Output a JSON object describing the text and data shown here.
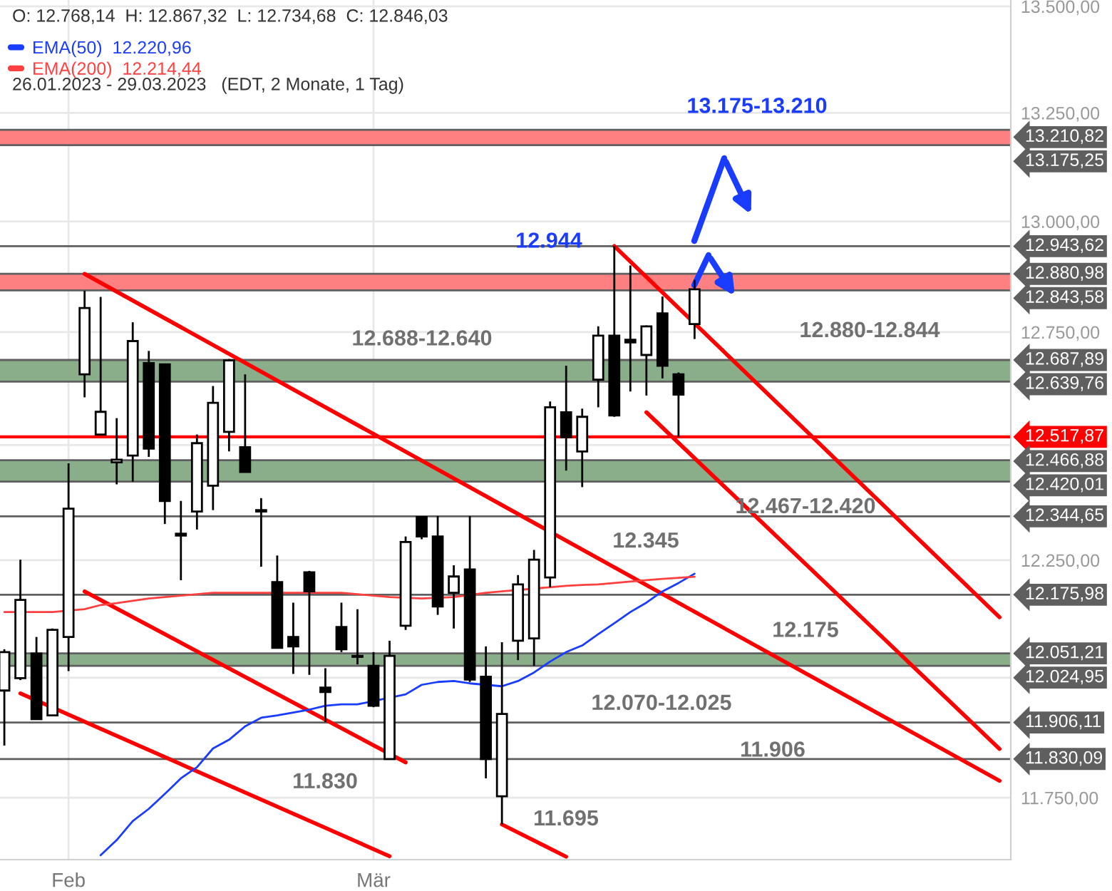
{
  "chart_data": {
    "type": "candlestick",
    "title": "O: 12.768,14  H: 12.867,32  L: 12.734,68  C: 12.846,03",
    "subtitle": "26.01.2023 - 29.03.2023   (EDT, 2 Monate, 1 Tag)",
    "categories": [
      null,
      null,
      null,
      null,
      "Feb",
      null,
      null,
      null,
      null,
      null,
      null,
      null,
      null,
      null,
      null,
      null,
      null,
      null,
      null,
      null,
      null,
      null,
      null,
      "Mär",
      null,
      null,
      null,
      null,
      null,
      null,
      null,
      null,
      null,
      null,
      null,
      null,
      null,
      null,
      null,
      null,
      null,
      null,
      null,
      null,
      null,
      null,
      null,
      null,
      null,
      null,
      null,
      null,
      null,
      null,
      null,
      null,
      null,
      null,
      null,
      null,
      null,
      null,
      null
    ],
    "ohlc": [
      [
        11973,
        12060,
        11858,
        12054
      ],
      [
        11999,
        12251,
        11995,
        12165
      ],
      [
        12051,
        12086,
        11912,
        11913
      ],
      [
        11921,
        12104,
        11920,
        12101
      ],
      [
        12086,
        12460,
        12014,
        12361
      ],
      [
        12656,
        12843,
        12605,
        12804
      ],
      [
        12523,
        12829,
        12523,
        12573
      ],
      [
        12462,
        12559,
        12414,
        12468
      ],
      [
        12477,
        12772,
        12420,
        12730
      ],
      [
        12681,
        12708,
        12474,
        12492
      ],
      [
        12678,
        12680,
        12328,
        12378
      ],
      [
        12307,
        12378,
        12207,
        12303
      ],
      [
        12355,
        12523,
        12316,
        12504
      ],
      [
        12411,
        12630,
        12358,
        12593
      ],
      [
        12529,
        12690,
        12486,
        12687
      ],
      [
        12495,
        12656,
        12440,
        12441
      ],
      [
        12358,
        12384,
        12236,
        12355
      ],
      [
        12203,
        12260,
        12062,
        12063
      ],
      [
        12086,
        12159,
        12008,
        12066
      ],
      [
        12224,
        12227,
        12006,
        12183
      ],
      [
        11979,
        12020,
        11907,
        11970
      ],
      [
        12107,
        12159,
        12054,
        12060
      ],
      [
        12046,
        12145,
        12028,
        12044
      ],
      [
        12025,
        12054,
        11938,
        11941
      ],
      [
        11830,
        12078,
        11830,
        12046
      ],
      [
        12110,
        12301,
        12101,
        12289
      ],
      [
        12343,
        12345,
        12295,
        12301
      ],
      [
        12301,
        12345,
        12133,
        12151
      ],
      [
        12180,
        12239,
        12104,
        12215
      ],
      [
        12230,
        12345,
        11991,
        11996
      ],
      [
        12002,
        12066,
        11790,
        11830
      ],
      [
        11753,
        12075,
        11695,
        11924
      ],
      [
        12078,
        12218,
        12037,
        12198
      ],
      [
        12083,
        12272,
        12025,
        12251
      ],
      [
        12213,
        12596,
        12192,
        12583
      ],
      [
        12572,
        12675,
        12444,
        12517
      ],
      [
        12486,
        12580,
        12408,
        12562
      ],
      [
        12644,
        12763,
        12583,
        12742
      ],
      [
        12742,
        12944,
        12562,
        12565
      ],
      [
        12733,
        12900,
        12618,
        12727
      ],
      [
        12699,
        12765,
        12609,
        12763
      ],
      [
        12792,
        12830,
        12647,
        12675
      ],
      [
        12656,
        12660,
        12518,
        12611
      ],
      [
        12768.14,
        12867.32,
        12734.68,
        12846.03
      ],
      null,
      null,
      null,
      null,
      null,
      null,
      null,
      null,
      null,
      null,
      null,
      null,
      null,
      null,
      null,
      null,
      null,
      null,
      null
    ],
    "series": [
      {
        "type": "line",
        "name": "EMA(50)  12.220,96",
        "color": "#1a3cff",
        "values": [
          null,
          null,
          null,
          null,
          null,
          null,
          11632,
          11663,
          11702,
          11727,
          11758,
          11790,
          11813,
          11852,
          11870,
          11898,
          11916,
          11921,
          11927,
          11933,
          11941,
          11944,
          11944,
          null,
          null,
          11965,
          11985,
          11991,
          11993,
          11988,
          null,
          11982,
          11993,
          12011,
          12034,
          12054,
          12068,
          12092,
          12115,
          12139,
          12159,
          12183,
          12201,
          12220.96,
          null,
          null,
          null,
          null,
          null,
          null,
          null,
          null,
          null,
          null,
          null,
          null,
          null,
          null,
          null,
          null,
          null,
          null,
          null
        ]
      },
      {
        "type": "line",
        "name": "EMA(200)  12.214,44",
        "color": "#ff4040",
        "values": [
          12139,
          null,
          12139,
          12139,
          null,
          12145,
          12154,
          12158,
          12163,
          12168,
          12171,
          12174,
          12177,
          12180,
          12180,
          12180,
          12180,
          null,
          12180,
          12180,
          12180,
          12180,
          12177,
          12174,
          12171,
          null,
          12168,
          null,
          12171,
          null,
          12180,
          12183,
          null,
          null,
          12192,
          12195,
          12197,
          12198,
          12201,
          12204,
          12207,
          12210,
          12212,
          12214.44,
          null,
          null,
          null,
          null,
          null,
          null,
          null,
          null,
          null,
          null,
          null,
          null,
          null,
          null,
          null,
          null,
          null,
          null,
          null
        ]
      },
      {
        "type": "line",
        "color": "#ff0000",
        "values": [
          null,
          null,
          null,
          null,
          null,
          12881,
          null,
          null,
          null,
          null,
          null,
          null,
          null,
          null,
          null,
          null,
          null,
          null,
          null,
          null,
          null,
          null,
          null,
          null,
          null,
          null,
          null,
          null,
          null,
          null,
          null,
          null,
          null,
          null,
          null,
          null,
          null,
          null,
          null,
          null,
          null,
          null,
          null,
          null,
          null,
          null,
          null,
          null,
          null,
          null,
          null,
          null,
          null,
          null,
          null,
          null,
          null,
          null,
          null,
          null,
          null,
          null,
          11785
        ]
      },
      {
        "type": "line",
        "color": "#ff0000",
        "values": [
          null,
          null,
          null,
          null,
          null,
          12183,
          null,
          null,
          null,
          null,
          null,
          null,
          null,
          null,
          null,
          null,
          null,
          null,
          null,
          null,
          null,
          null,
          null,
          null,
          null,
          11823,
          null,
          null,
          null,
          null,
          null,
          null,
          null,
          null,
          null,
          null,
          null,
          null,
          null,
          null,
          null,
          null,
          null,
          null,
          null,
          null,
          null,
          null,
          null,
          null,
          null,
          null,
          null,
          null,
          null,
          null,
          null,
          null,
          null,
          null,
          null,
          null,
          null
        ]
      },
      {
        "type": "line",
        "color": "#ff0000",
        "values": [
          null,
          11967,
          null,
          null,
          null,
          null,
          null,
          null,
          null,
          null,
          null,
          null,
          null,
          null,
          null,
          null,
          null,
          null,
          null,
          null,
          null,
          null,
          null,
          null,
          11630,
          null,
          null,
          null,
          null,
          null,
          null,
          null,
          null,
          null,
          null,
          null,
          null,
          null,
          null,
          null,
          null,
          null,
          null,
          null,
          null,
          null,
          null,
          null,
          null,
          null,
          null,
          null,
          null,
          null,
          null,
          null,
          null,
          null,
          null,
          null,
          null,
          null,
          null
        ]
      },
      {
        "type": "line",
        "color": "#ff0000",
        "values": [
          null,
          null,
          null,
          null,
          null,
          null,
          null,
          null,
          null,
          null,
          null,
          null,
          null,
          null,
          null,
          null,
          null,
          null,
          null,
          null,
          null,
          null,
          null,
          null,
          null,
          null,
          null,
          null,
          null,
          null,
          null,
          11695,
          null,
          null,
          null,
          11629,
          null,
          null,
          null,
          null,
          null,
          null,
          null,
          null,
          null,
          null,
          null,
          null,
          null,
          null,
          null,
          null,
          null,
          null,
          null,
          null,
          null,
          null,
          null,
          null,
          null,
          null,
          null
        ]
      },
      {
        "type": "line",
        "color": "#ff0000",
        "values": [
          null,
          null,
          null,
          null,
          null,
          null,
          null,
          null,
          null,
          null,
          null,
          null,
          null,
          null,
          null,
          null,
          null,
          null,
          null,
          null,
          null,
          null,
          null,
          null,
          null,
          null,
          null,
          null,
          null,
          null,
          null,
          null,
          null,
          null,
          null,
          null,
          null,
          null,
          12944,
          null,
          null,
          null,
          null,
          null,
          null,
          null,
          null,
          null,
          null,
          null,
          null,
          null,
          null,
          null,
          null,
          null,
          null,
          null,
          null,
          null,
          null,
          null,
          12128
        ]
      },
      {
        "type": "line",
        "color": "#ff0000",
        "values": [
          null,
          null,
          null,
          null,
          null,
          null,
          null,
          null,
          null,
          null,
          null,
          null,
          null,
          null,
          null,
          null,
          null,
          null,
          null,
          null,
          null,
          null,
          null,
          null,
          null,
          null,
          null,
          null,
          null,
          null,
          null,
          null,
          null,
          null,
          null,
          null,
          null,
          null,
          null,
          null,
          12572,
          null,
          null,
          null,
          null,
          null,
          null,
          null,
          null,
          null,
          null,
          null,
          null,
          null,
          null,
          null,
          null,
          null,
          null,
          null,
          null,
          null,
          11851
        ]
      }
    ],
    "bands": [
      {
        "axis": "y",
        "from": 13175.25,
        "to": 13210.82,
        "color": "#ff8080"
      },
      {
        "axis": "y",
        "from": 12843.58,
        "to": 12880.98,
        "color": "#ff8080"
      },
      {
        "axis": "y",
        "from": 12639.76,
        "to": 12687.89,
        "color": "#8aae8a"
      },
      {
        "axis": "y",
        "from": 12420.01,
        "to": 12466.88,
        "color": "#8aae8a"
      },
      {
        "axis": "y",
        "from": 12024.95,
        "to": 12051.21,
        "color": "#8aae8a"
      }
    ],
    "ref_lines": [
      {
        "axis": "y",
        "value": 13210.82,
        "label": "13.210,82",
        "color": "#5f5f5f"
      },
      {
        "axis": "y",
        "value": 13175.25,
        "label": "13.175,25",
        "color": "#5f5f5f"
      },
      {
        "axis": "y",
        "value": 12943.62,
        "label": "12.943,62",
        "color": "#5f5f5f"
      },
      {
        "axis": "y",
        "value": 12880.98,
        "label": "12.880,98",
        "color": "#5f5f5f"
      },
      {
        "axis": "y",
        "value": 12843.58,
        "label": "12.843,58",
        "color": "#5f5f5f"
      },
      {
        "axis": "y",
        "value": 12687.89,
        "label": "12.687,89",
        "color": "#5f5f5f"
      },
      {
        "axis": "y",
        "value": 12639.76,
        "label": "12.639,76",
        "color": "#5f5f5f"
      },
      {
        "axis": "y",
        "value": 12517.87,
        "label": "12.517,87",
        "color": "#ff0000"
      },
      {
        "axis": "y",
        "value": 12466.88,
        "label": "12.466,88",
        "color": "#5f5f5f"
      },
      {
        "axis": "y",
        "value": 12420.01,
        "label": "12.420,01",
        "color": "#5f5f5f"
      },
      {
        "axis": "y",
        "value": 12344.65,
        "label": "12.344,65",
        "color": "#5f5f5f"
      },
      {
        "axis": "y",
        "value": 12175.98,
        "label": "12.175,98",
        "color": "#5f5f5f"
      },
      {
        "axis": "y",
        "value": 12051.21,
        "label": "12.051,21",
        "color": "#5f5f5f"
      },
      {
        "axis": "y",
        "value": 12024.95,
        "label": "12.024,95",
        "color": "#5f5f5f"
      },
      {
        "axis": "y",
        "value": 11906.11,
        "label": "11.906,11",
        "color": "#5f5f5f"
      },
      {
        "axis": "y",
        "value": 11830.09,
        "label": "11.830,09",
        "color": "#5f5f5f"
      }
    ],
    "annotations": [
      "13.175-13.210",
      "12.944",
      "12.688-12.640",
      "12.880-12.844",
      "12.467-12.420",
      "12.345",
      "12.175",
      "12.070-12.025",
      "11.906",
      "11.830",
      "11.695"
    ],
    "ylim": [
      11623,
      13515
    ],
    "yticks": [
      {
        "value": 11750,
        "label": "11.750,00"
      },
      {
        "value": 12000,
        "label": null
      },
      {
        "value": 12250,
        "label": "12.250,00"
      },
      {
        "value": 12500,
        "label": null
      },
      {
        "value": 12750,
        "label": "12.750,00"
      },
      {
        "value": 13000,
        "label": "13.000,00"
      },
      {
        "value": 13250,
        "label": "13.250,00"
      },
      {
        "value": 13500,
        "label": "13.500,00"
      }
    ],
    "log": "y",
    "grid": true,
    "legend": "top left"
  }
}
